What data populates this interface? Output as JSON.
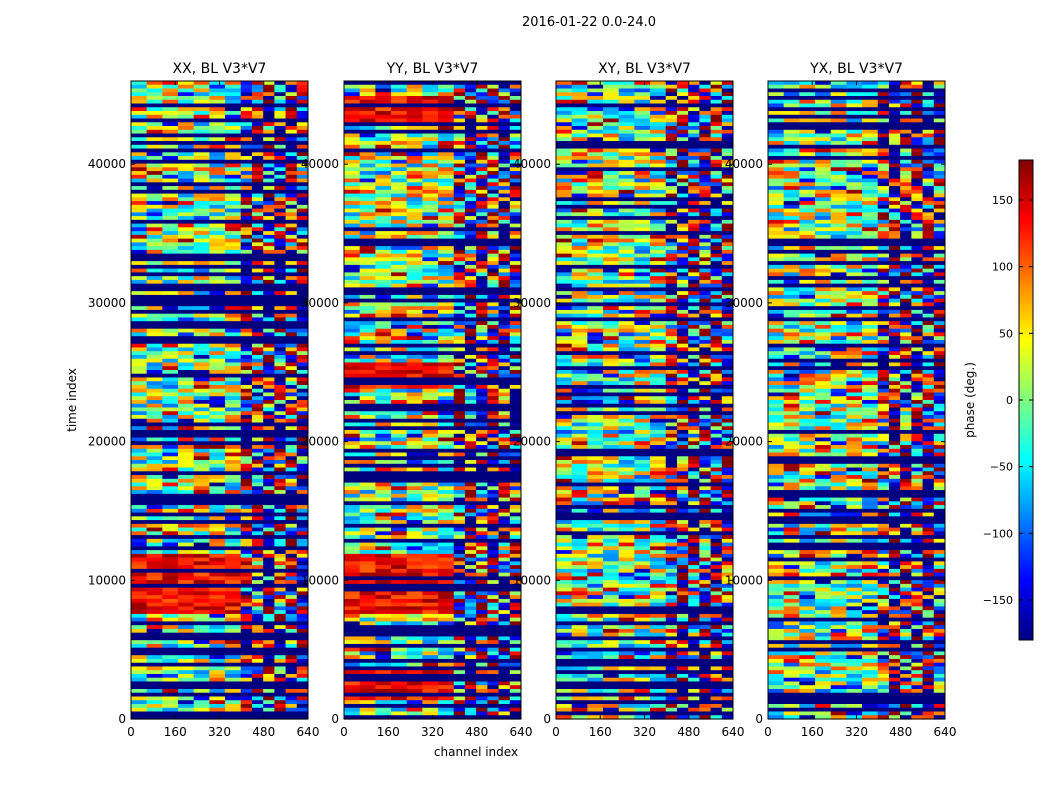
{
  "figure_title": "2016-01-22 0.0-24.0",
  "chart_data": {
    "type": "heatmap",
    "xlabel": "channel index",
    "ylabel": "time index",
    "xlim": [
      0,
      640
    ],
    "ylim": [
      0,
      46000
    ],
    "x_ticks": [
      0,
      160,
      320,
      480,
      640
    ],
    "y_ticks": [
      0,
      10000,
      20000,
      30000,
      40000
    ],
    "panels": [
      {
        "title": "XX, BL V3*V7",
        "polarization": "XX",
        "baseline": "V3*V7"
      },
      {
        "title": "YY, BL V3*V7",
        "polarization": "YY",
        "baseline": "V3*V7"
      },
      {
        "title": "XY, BL V3*V7",
        "polarization": "XY",
        "baseline": "V3*V7"
      },
      {
        "title": "YX, BL V3*V7",
        "polarization": "YX",
        "baseline": "V3*V7"
      }
    ],
    "colorbar": {
      "label": "phase (deg.)",
      "range": [
        -180,
        180
      ],
      "ticks": [
        150,
        100,
        50,
        0,
        -50,
        -100,
        -150
      ],
      "colormap": "jet",
      "colors": [
        "#00007f",
        "#0000ff",
        "#007fff",
        "#00ffff",
        "#7fff7f",
        "#ffff00",
        "#ff7f00",
        "#ff0000",
        "#7f0000"
      ]
    },
    "notes": "Phase vs. time and channel; many flagged rows (dark blue bands) and fringe patterns beyond channel ~400."
  }
}
